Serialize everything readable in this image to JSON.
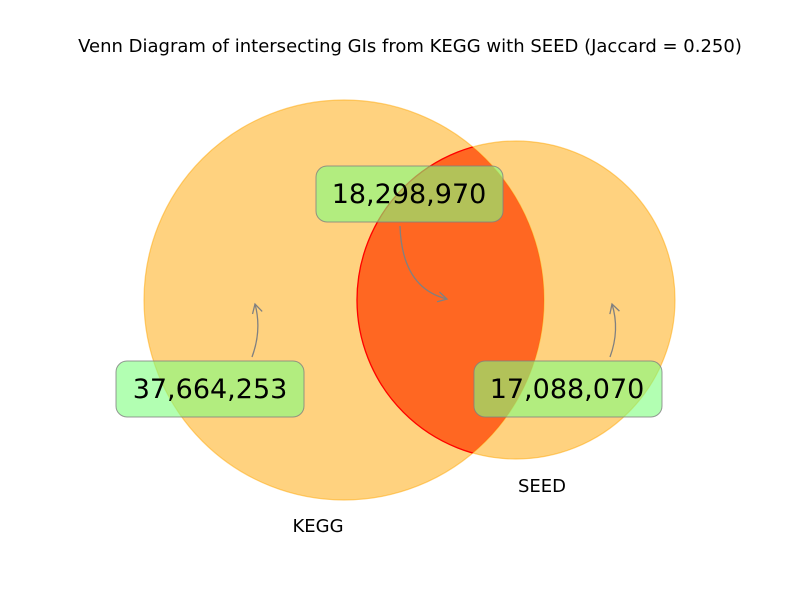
{
  "title": "Venn Diagram of intersecting GIs from KEGG with SEED (Jaccard = 0.250)",
  "sets": [
    {
      "name": "KEGG",
      "color": "#ffa500"
    },
    {
      "name": "SEED",
      "color": "#ffa500"
    }
  ],
  "regions": {
    "kegg_only": "37,664,253",
    "intersection": "18,298,970",
    "seed_only": "17,088,070"
  },
  "colors": {
    "set_fill": "#ffa500",
    "intersection_fill": "#ff0000",
    "label_box": "#7fff7f",
    "arrow": "#808080"
  },
  "jaccard": 0.25
}
